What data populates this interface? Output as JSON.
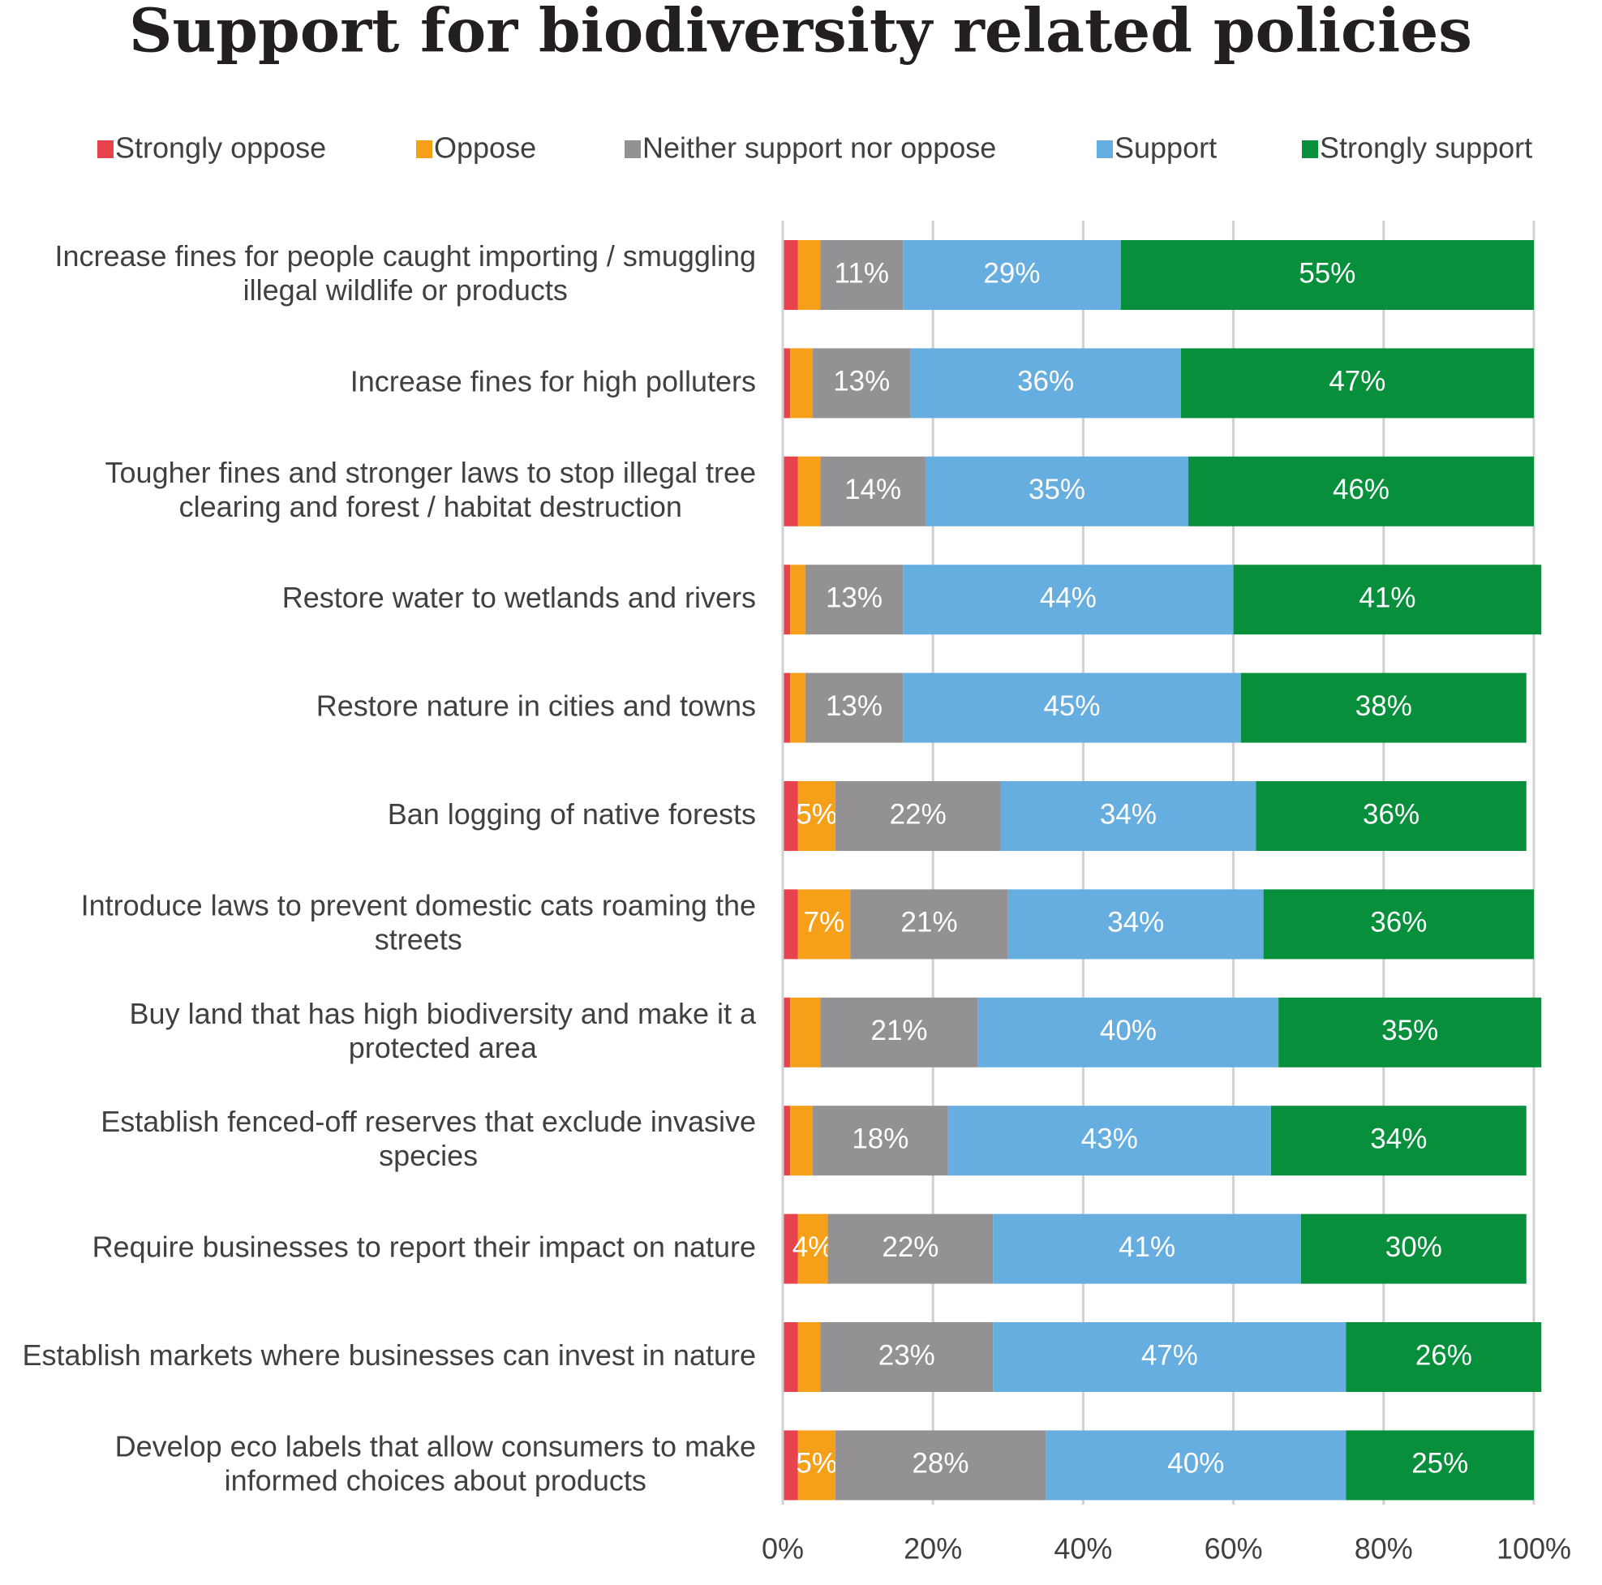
{
  "chart_data": {
    "type": "stacked_bar_horizontal",
    "title": "Support for biodiversity related policies",
    "categories": [
      "Increase fines for people caught importing / smuggling illegal wildlife or products",
      "Increase fines for high polluters",
      "Tougher fines and stronger laws to stop illegal tree clearing and forest / habitat destruction",
      "Restore water to wetlands and rivers",
      "Restore nature in cities and towns",
      "Ban logging of native forests",
      "Introduce laws to prevent domestic cats roaming the streets",
      "Buy land that has high biodiversity and make it a protected area",
      "Establish fenced-off reserves that exclude invasive species",
      "Require businesses to report their impact on nature",
      "Establish markets where businesses can invest in nature",
      "Develop eco labels that allow consumers to make informed choices about products"
    ],
    "series": [
      {
        "name": "Strongly oppose",
        "color": "#e8424f",
        "values": [
          2,
          1,
          2,
          1,
          1,
          2,
          2,
          1,
          1,
          2,
          2,
          2
        ],
        "value_labels": [
          null,
          null,
          null,
          null,
          null,
          null,
          null,
          null,
          null,
          null,
          null,
          null
        ]
      },
      {
        "name": "Oppose",
        "color": "#f6a01a",
        "values": [
          3,
          3,
          3,
          2,
          2,
          5,
          7,
          4,
          3,
          4,
          3,
          5
        ],
        "value_labels": [
          null,
          null,
          null,
          null,
          null,
          "5%",
          "7%",
          null,
          null,
          "4%",
          null,
          "5%"
        ]
      },
      {
        "name": "Neither support nor oppose",
        "color": "#939194",
        "values": [
          11,
          13,
          14,
          13,
          13,
          22,
          21,
          21,
          18,
          22,
          23,
          28
        ],
        "value_labels": [
          "11%",
          "13%",
          "14%",
          "13%",
          "13%",
          "22%",
          "21%",
          "21%",
          "18%",
          "22%",
          "23%",
          "28%"
        ]
      },
      {
        "name": "Support",
        "color": "#67aee0",
        "values": [
          29,
          36,
          35,
          44,
          45,
          34,
          34,
          40,
          43,
          41,
          47,
          40
        ],
        "value_labels": [
          "29%",
          "36%",
          "35%",
          "44%",
          "45%",
          "34%",
          "34%",
          "40%",
          "43%",
          "41%",
          "47%",
          "40%"
        ]
      },
      {
        "name": "Strongly support",
        "color": "#078f3c",
        "values": [
          55,
          47,
          46,
          41,
          38,
          36,
          36,
          35,
          34,
          30,
          26,
          25
        ],
        "value_labels": [
          "55%",
          "47%",
          "46%",
          "41%",
          "38%",
          "36%",
          "36%",
          "35%",
          "34%",
          "30%",
          "26%",
          "25%"
        ]
      }
    ],
    "xlim": [
      0,
      100
    ],
    "xticks": [
      {
        "value": 0,
        "label": "0%"
      },
      {
        "value": 20,
        "label": "20%"
      },
      {
        "value": 40,
        "label": "40%"
      },
      {
        "value": 60,
        "label": "60%"
      },
      {
        "value": 80,
        "label": "80%"
      },
      {
        "value": 100,
        "label": "100%"
      }
    ],
    "grid": true,
    "legend": "top"
  }
}
